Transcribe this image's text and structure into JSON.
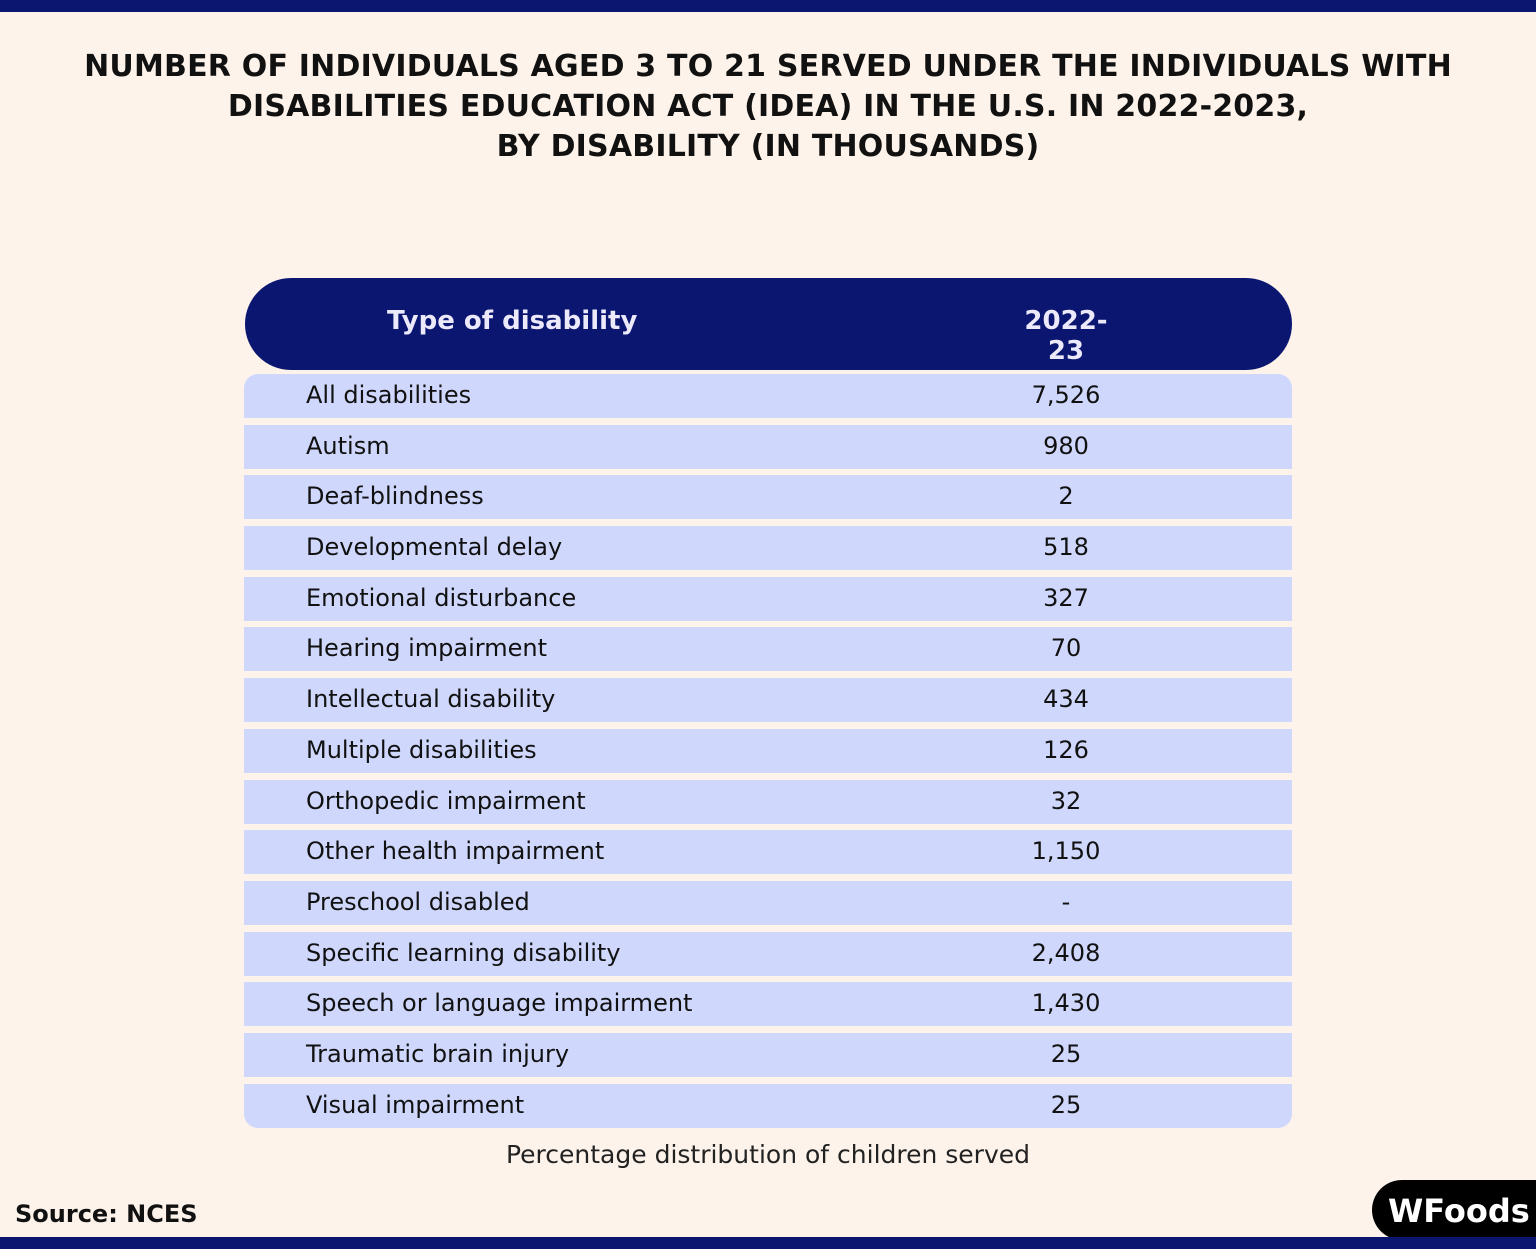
{
  "colors": {
    "navy": "#0a1670",
    "row": "#cfd8fc",
    "background": "#fdf3ea"
  },
  "title": {
    "line1": "NUMBER OF INDIVIDUALS AGED 3 TO 21 SERVED UNDER THE INDIVIDUALS WITH",
    "line2": "DISABILITIES EDUCATION ACT (IDEA) IN THE U.S. IN 2022-2023,",
    "line3": "BY DISABILITY (IN THOUSANDS)"
  },
  "chart_data": {
    "type": "table",
    "columns": [
      "Type of disability",
      "2022-23"
    ],
    "rows": [
      [
        "All disabilities",
        "7,526"
      ],
      [
        "Autism",
        "980"
      ],
      [
        "Deaf-blindness",
        "2"
      ],
      [
        "Developmental delay",
        "518"
      ],
      [
        "Emotional disturbance",
        "327"
      ],
      [
        "Hearing impairment",
        "70"
      ],
      [
        "Intellectual disability",
        "434"
      ],
      [
        "Multiple disabilities",
        "126"
      ],
      [
        "Orthopedic impairment",
        "32"
      ],
      [
        "Other health impairment",
        "1,150"
      ],
      [
        "Preschool disabled",
        "-"
      ],
      [
        "Specific learning disability",
        "2,408"
      ],
      [
        "Speech or language impairment",
        "1,430"
      ],
      [
        "Traumatic brain injury",
        "25"
      ],
      [
        "Visual impairment",
        "25"
      ]
    ]
  },
  "caption": "Percentage distribution of children served",
  "source": "Source: NCES",
  "logo": "WFoods"
}
